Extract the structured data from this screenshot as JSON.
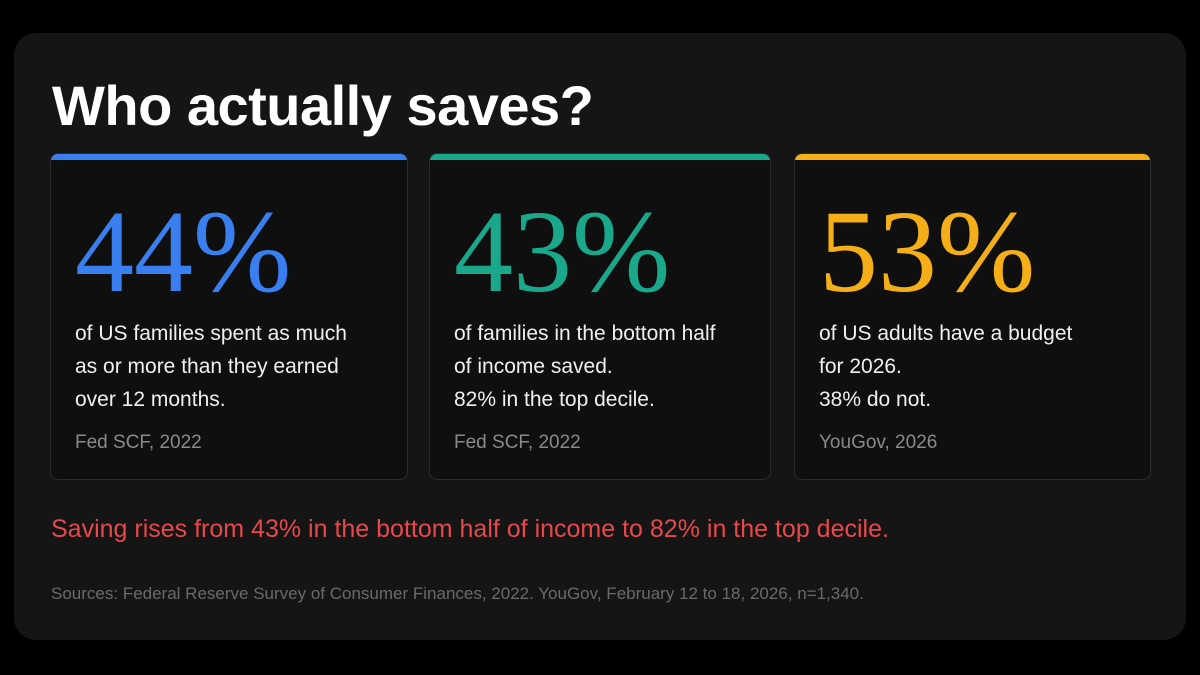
{
  "title": "Who actually saves?",
  "cards": [
    {
      "stat": "44%",
      "color": "#3a7ff0",
      "lines": [
        "of US families spent as much",
        "as or more than they earned",
        "over 12 months."
      ],
      "source": "Fed SCF, 2022"
    },
    {
      "stat": "43%",
      "color": "#1aa88a",
      "lines": [
        "of families in the bottom half",
        "of income saved.",
        "82% in the top decile."
      ],
      "source": "Fed SCF, 2022"
    },
    {
      "stat": "53%",
      "color": "#f4ae17",
      "lines": [
        "of US adults have a budget",
        "for 2026.",
        "38% do not."
      ],
      "source": "YouGov, 2026"
    }
  ],
  "highlight": "Saving rises from 43% in the bottom half of income to 82% in the top decile.",
  "footnote": "Sources: Federal Reserve Survey of Consumer Finances, 2022. YouGov, February 12 to 18, 2026, n=1,340."
}
